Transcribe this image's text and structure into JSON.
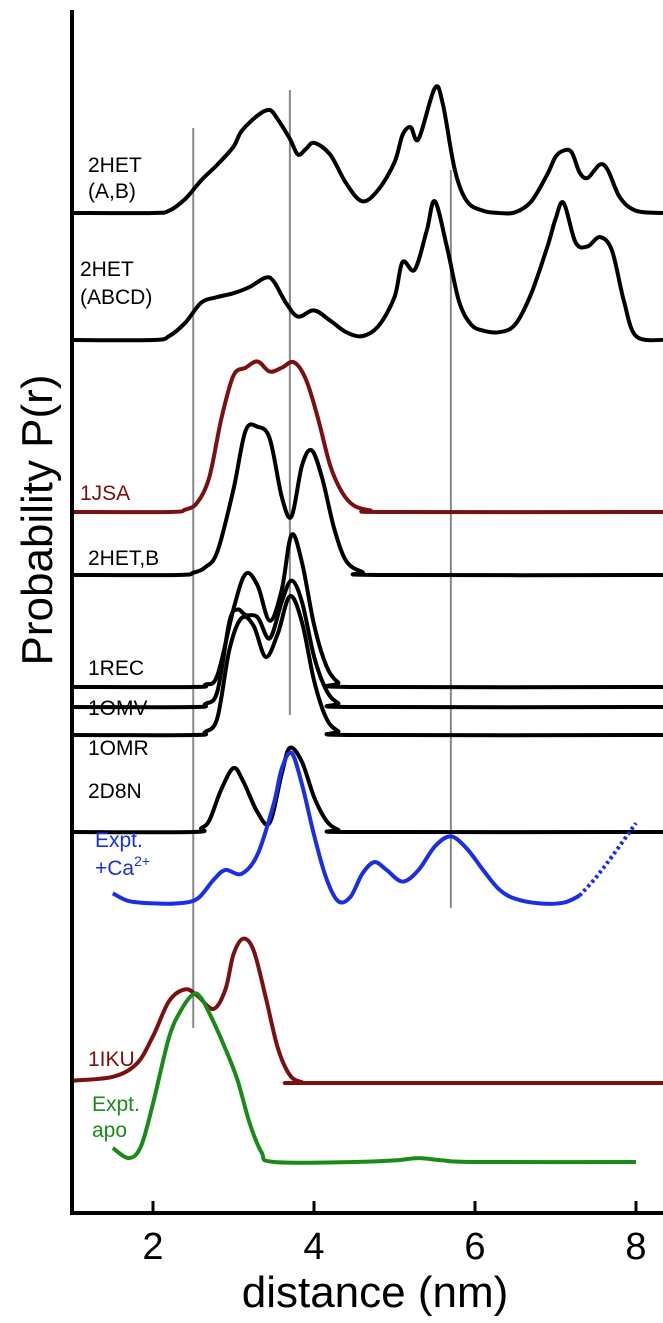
{
  "chart_data": {
    "type": "line",
    "title": "",
    "xlabel": "distance (nm)",
    "ylabel": "Probability P(r)",
    "xlim": [
      1,
      8.4
    ],
    "x_ticks": [
      "2",
      "4",
      "6",
      "8"
    ],
    "y_ticks": [],
    "stacked_offsets": true,
    "grid": false,
    "legend": "inline labels at left of each curve",
    "reference_lines_x": [
      2.5,
      3.7,
      5.7
    ],
    "series": [
      {
        "name": "2HET\n(A,B)",
        "label_lines": [
          "2HET",
          "(A,B)"
        ],
        "color": "#000000",
        "baseline": 0,
        "points": [
          [
            1.0,
            0
          ],
          [
            2.0,
            0
          ],
          [
            2.2,
            3
          ],
          [
            2.4,
            18
          ],
          [
            2.6,
            42
          ],
          [
            2.8,
            62
          ],
          [
            3.0,
            85
          ],
          [
            3.1,
            105
          ],
          [
            3.3,
            125
          ],
          [
            3.45,
            132
          ],
          [
            3.55,
            120
          ],
          [
            3.7,
            95
          ],
          [
            3.8,
            75
          ],
          [
            3.9,
            82
          ],
          [
            4.0,
            90
          ],
          [
            4.2,
            75
          ],
          [
            4.4,
            38
          ],
          [
            4.6,
            15
          ],
          [
            4.8,
            30
          ],
          [
            5.0,
            65
          ],
          [
            5.1,
            100
          ],
          [
            5.2,
            110
          ],
          [
            5.3,
            95
          ],
          [
            5.5,
            160
          ],
          [
            5.6,
            140
          ],
          [
            5.75,
            55
          ],
          [
            5.9,
            15
          ],
          [
            6.1,
            3
          ],
          [
            6.3,
            0
          ],
          [
            6.5,
            1
          ],
          [
            6.7,
            15
          ],
          [
            6.9,
            50
          ],
          [
            7.0,
            72
          ],
          [
            7.1,
            80
          ],
          [
            7.2,
            78
          ],
          [
            7.3,
            52
          ],
          [
            7.4,
            45
          ],
          [
            7.55,
            62
          ],
          [
            7.65,
            55
          ],
          [
            7.8,
            20
          ],
          [
            8.0,
            3
          ],
          [
            8.4,
            0
          ]
        ]
      },
      {
        "name": "2HET\n(ABCD)",
        "label_lines": [
          "2HET",
          "(ABCD)"
        ],
        "color": "#000000",
        "baseline": 0,
        "points": [
          [
            1.0,
            0
          ],
          [
            2.0,
            0
          ],
          [
            2.2,
            5
          ],
          [
            2.4,
            22
          ],
          [
            2.6,
            48
          ],
          [
            2.8,
            55
          ],
          [
            3.0,
            60
          ],
          [
            3.2,
            68
          ],
          [
            3.4,
            80
          ],
          [
            3.5,
            75
          ],
          [
            3.65,
            48
          ],
          [
            3.8,
            30
          ],
          [
            4.0,
            38
          ],
          [
            4.2,
            25
          ],
          [
            4.4,
            10
          ],
          [
            4.6,
            5
          ],
          [
            4.8,
            18
          ],
          [
            5.0,
            55
          ],
          [
            5.1,
            100
          ],
          [
            5.25,
            90
          ],
          [
            5.4,
            140
          ],
          [
            5.5,
            178
          ],
          [
            5.65,
            120
          ],
          [
            5.8,
            50
          ],
          [
            5.95,
            20
          ],
          [
            6.1,
            12
          ],
          [
            6.3,
            10
          ],
          [
            6.5,
            20
          ],
          [
            6.7,
            60
          ],
          [
            6.9,
            120
          ],
          [
            7.0,
            155
          ],
          [
            7.1,
            176
          ],
          [
            7.25,
            125
          ],
          [
            7.4,
            120
          ],
          [
            7.55,
            132
          ],
          [
            7.7,
            115
          ],
          [
            7.85,
            50
          ],
          [
            8.0,
            5
          ],
          [
            8.4,
            0
          ]
        ]
      },
      {
        "name": "1JSA",
        "color": "#7a1010",
        "baseline": 0,
        "points": [
          [
            1.0,
            0
          ],
          [
            2.2,
            0
          ],
          [
            2.4,
            3
          ],
          [
            2.55,
            12
          ],
          [
            2.7,
            45
          ],
          [
            2.85,
            120
          ],
          [
            3.0,
            175
          ],
          [
            3.15,
            185
          ],
          [
            3.3,
            193
          ],
          [
            3.45,
            180
          ],
          [
            3.6,
            185
          ],
          [
            3.75,
            192
          ],
          [
            3.9,
            170
          ],
          [
            4.05,
            120
          ],
          [
            4.2,
            60
          ],
          [
            4.35,
            25
          ],
          [
            4.5,
            8
          ],
          [
            4.7,
            2
          ],
          [
            4.9,
            0
          ],
          [
            8.4,
            0
          ]
        ]
      },
      {
        "name": "2HET,B",
        "color": "#000000",
        "baseline": 0,
        "points": [
          [
            1.0,
            0
          ],
          [
            2.3,
            0
          ],
          [
            2.5,
            3
          ],
          [
            2.65,
            10
          ],
          [
            2.8,
            30
          ],
          [
            3.0,
            110
          ],
          [
            3.15,
            185
          ],
          [
            3.3,
            190
          ],
          [
            3.45,
            175
          ],
          [
            3.6,
            100
          ],
          [
            3.72,
            75
          ],
          [
            3.85,
            140
          ],
          [
            3.97,
            160
          ],
          [
            4.1,
            125
          ],
          [
            4.25,
            60
          ],
          [
            4.4,
            18
          ],
          [
            4.6,
            4
          ],
          [
            4.8,
            0
          ],
          [
            8.4,
            0
          ]
        ]
      },
      {
        "name": "1REC",
        "color": "#000000",
        "baseline": 0,
        "points": [
          [
            1.0,
            0
          ],
          [
            2.5,
            0
          ],
          [
            2.65,
            3
          ],
          [
            2.8,
            15
          ],
          [
            3.0,
            100
          ],
          [
            3.15,
            145
          ],
          [
            3.3,
            130
          ],
          [
            3.45,
            85
          ],
          [
            3.6,
            125
          ],
          [
            3.72,
            195
          ],
          [
            3.85,
            160
          ],
          [
            4.0,
            80
          ],
          [
            4.15,
            28
          ],
          [
            4.3,
            6
          ],
          [
            4.5,
            0
          ],
          [
            8.4,
            0
          ]
        ]
      },
      {
        "name": "1OMV",
        "color": "#000000",
        "baseline": 0,
        "points": [
          [
            1.0,
            0
          ],
          [
            2.5,
            0
          ],
          [
            2.65,
            4
          ],
          [
            2.8,
            20
          ],
          [
            2.95,
            110
          ],
          [
            3.05,
            125
          ],
          [
            3.15,
            118
          ],
          [
            3.3,
            115
          ],
          [
            3.45,
            88
          ],
          [
            3.6,
            135
          ],
          [
            3.72,
            162
          ],
          [
            3.85,
            135
          ],
          [
            4.0,
            65
          ],
          [
            4.15,
            22
          ],
          [
            4.3,
            5
          ],
          [
            4.5,
            0
          ],
          [
            8.4,
            0
          ]
        ]
      },
      {
        "name": "1OMR",
        "color": "#000000",
        "baseline": 0,
        "points": [
          [
            1.0,
            0
          ],
          [
            2.5,
            0
          ],
          [
            2.65,
            4
          ],
          [
            2.8,
            22
          ],
          [
            2.95,
            110
          ],
          [
            3.1,
            150
          ],
          [
            3.25,
            140
          ],
          [
            3.4,
            100
          ],
          [
            3.55,
            130
          ],
          [
            3.7,
            178
          ],
          [
            3.85,
            145
          ],
          [
            4.0,
            70
          ],
          [
            4.15,
            22
          ],
          [
            4.3,
            5
          ],
          [
            4.5,
            0
          ],
          [
            8.4,
            0
          ]
        ]
      },
      {
        "name": "2D8N",
        "color": "#000000",
        "baseline": 0,
        "points": [
          [
            1.0,
            0
          ],
          [
            2.5,
            0
          ],
          [
            2.6,
            5
          ],
          [
            2.7,
            15
          ],
          [
            2.85,
            55
          ],
          [
            3.0,
            82
          ],
          [
            3.12,
            65
          ],
          [
            3.3,
            25
          ],
          [
            3.45,
            12
          ],
          [
            3.6,
            75
          ],
          [
            3.7,
            108
          ],
          [
            3.85,
            90
          ],
          [
            4.0,
            45
          ],
          [
            4.15,
            15
          ],
          [
            4.3,
            3
          ],
          [
            4.5,
            0
          ],
          [
            8.4,
            0
          ]
        ]
      },
      {
        "name": "Expt.\n+Ca2+",
        "label_lines": [
          "Expt.",
          "+Ca"
        ],
        "superscript": "2+",
        "color": "#1a2ee6",
        "baseline": 0,
        "dashed_from_x": 7.3,
        "points": [
          [
            1.5,
            15
          ],
          [
            1.7,
            5
          ],
          [
            2.0,
            2
          ],
          [
            2.3,
            2
          ],
          [
            2.55,
            8
          ],
          [
            2.75,
            32
          ],
          [
            2.9,
            45
          ],
          [
            3.1,
            40
          ],
          [
            3.3,
            65
          ],
          [
            3.5,
            130
          ],
          [
            3.6,
            175
          ],
          [
            3.72,
            195
          ],
          [
            3.85,
            155
          ],
          [
            4.0,
            90
          ],
          [
            4.15,
            35
          ],
          [
            4.3,
            5
          ],
          [
            4.45,
            10
          ],
          [
            4.6,
            40
          ],
          [
            4.75,
            55
          ],
          [
            4.9,
            45
          ],
          [
            5.1,
            30
          ],
          [
            5.3,
            45
          ],
          [
            5.5,
            75
          ],
          [
            5.7,
            88
          ],
          [
            5.9,
            72
          ],
          [
            6.1,
            45
          ],
          [
            6.3,
            20
          ],
          [
            6.5,
            8
          ],
          [
            6.8,
            2
          ],
          [
            7.1,
            3
          ],
          [
            7.3,
            12
          ],
          [
            7.5,
            35
          ],
          [
            7.7,
            62
          ],
          [
            8.0,
            105
          ]
        ]
      },
      {
        "name": "1IKU",
        "color": "#7a1010",
        "baseline": 0,
        "points": [
          [
            1.0,
            3
          ],
          [
            1.5,
            8
          ],
          [
            1.8,
            25
          ],
          [
            2.0,
            60
          ],
          [
            2.2,
            105
          ],
          [
            2.4,
            120
          ],
          [
            2.55,
            112
          ],
          [
            2.75,
            95
          ],
          [
            2.9,
            120
          ],
          [
            3.0,
            165
          ],
          [
            3.12,
            185
          ],
          [
            3.25,
            170
          ],
          [
            3.4,
            110
          ],
          [
            3.55,
            45
          ],
          [
            3.7,
            10
          ],
          [
            3.85,
            1
          ],
          [
            4.0,
            0
          ],
          [
            8.4,
            0
          ]
        ]
      },
      {
        "name": "Expt.\napo",
        "label_lines": [
          "Expt.",
          "apo"
        ],
        "color": "#1a8a1a",
        "baseline": 0,
        "points": [
          [
            1.5,
            18
          ],
          [
            1.7,
            5
          ],
          [
            1.85,
            20
          ],
          [
            2.0,
            75
          ],
          [
            2.2,
            160
          ],
          [
            2.35,
            195
          ],
          [
            2.5,
            215
          ],
          [
            2.6,
            210
          ],
          [
            2.75,
            180
          ],
          [
            2.9,
            145
          ],
          [
            3.05,
            105
          ],
          [
            3.2,
            50
          ],
          [
            3.35,
            12
          ],
          [
            3.5,
            0
          ],
          [
            4.5,
            0
          ],
          [
            5.0,
            2
          ],
          [
            5.3,
            5
          ],
          [
            5.6,
            2
          ],
          [
            6.0,
            0
          ],
          [
            8.0,
            0
          ]
        ]
      }
    ]
  }
}
